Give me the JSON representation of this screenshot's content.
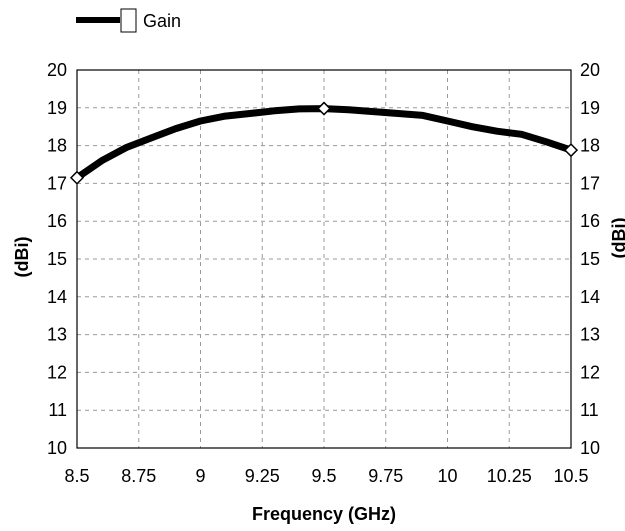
{
  "chart_data": {
    "type": "line",
    "title": "",
    "xlabel": "Frequency (GHz)",
    "ylabel": "(dBi)",
    "ylabel_right": "(dBi)",
    "xlim": [
      8.5,
      10.5
    ],
    "ylim": [
      10,
      20
    ],
    "x_ticks": [
      "8.5",
      "8.75",
      "9",
      "9.25",
      "9.5",
      "9.75",
      "10",
      "10.25",
      "10.5"
    ],
    "y_ticks": [
      "20",
      "19",
      "18",
      "17",
      "16",
      "15",
      "14",
      "13",
      "12",
      "11",
      "10"
    ],
    "grid": true,
    "legend_position": "top-left",
    "series": [
      {
        "name": "Gain",
        "color": "#000000",
        "x": [
          8.5,
          8.6,
          8.7,
          8.8,
          8.9,
          9.0,
          9.1,
          9.2,
          9.3,
          9.4,
          9.5,
          9.6,
          9.7,
          9.8,
          9.9,
          10.0,
          10.1,
          10.2,
          10.3,
          10.4,
          10.5
        ],
        "y": [
          17.15,
          17.6,
          17.95,
          18.2,
          18.45,
          18.65,
          18.78,
          18.85,
          18.92,
          18.97,
          18.98,
          18.95,
          18.9,
          18.85,
          18.8,
          18.65,
          18.5,
          18.38,
          18.3,
          18.1,
          17.88
        ],
        "markers_x": [
          8.5,
          9.5,
          10.5
        ]
      }
    ]
  }
}
